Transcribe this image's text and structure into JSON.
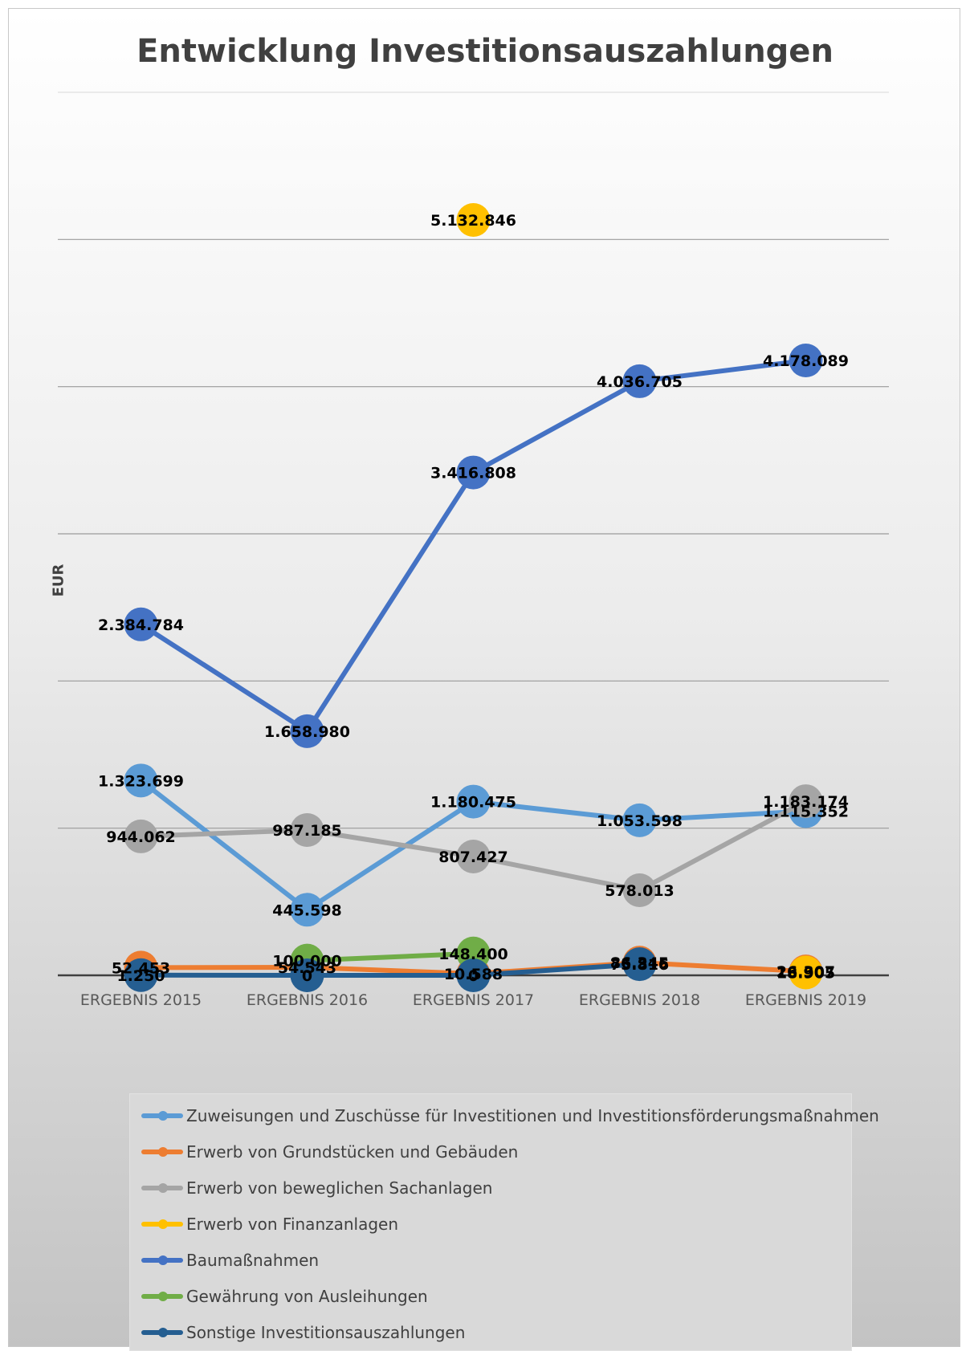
{
  "chart_data": {
    "type": "line",
    "title": "Entwicklung Investitionsauszahlungen",
    "ylabel": "EUR",
    "xlabel": "",
    "categories": [
      "ERGEBNIS 2015",
      "ERGEBNIS 2016",
      "ERGEBNIS 2017",
      "ERGEBNIS 2018",
      "ERGEBNIS 2019"
    ],
    "ylim": [
      0,
      6000000
    ],
    "grid": true,
    "legend_position": "bottom",
    "series": [
      {
        "name": "Zuweisungen und Zuschüsse für Investitionen und Investitionsförderungsmaßnahmen",
        "color": "#5b9bd5",
        "values": [
          1323699,
          445598,
          1180475,
          1053598,
          1115352
        ],
        "labels": [
          "1.323.699",
          "445.598",
          "1.180.475",
          "1.053.598",
          "1.115.352"
        ]
      },
      {
        "name": "Erwerb von Grundstücken und Gebäuden",
        "color": "#ed7d31",
        "values": [
          52453,
          54543,
          10588,
          86345,
          26307
        ],
        "labels": [
          "52.453",
          "54.543",
          "10.588",
          "86.345",
          "26.307"
        ]
      },
      {
        "name": "Erwerb von beweglichen Sachanlagen",
        "color": "#a5a5a5",
        "values": [
          944062,
          987185,
          807427,
          578013,
          1183174
        ],
        "labels": [
          "944.062",
          "987.185",
          "807.427",
          "578.013",
          "1.183.174"
        ]
      },
      {
        "name": "Erwerb von Finanzanlagen",
        "color": "#ffc000",
        "values": [
          null,
          null,
          5132846,
          null,
          18905
        ],
        "labels": [
          null,
          null,
          "5.132.846",
          null,
          "18.905"
        ]
      },
      {
        "name": "Baumaßnahmen",
        "color": "#4472c4",
        "values": [
          2384784,
          1658980,
          3416808,
          4036705,
          4178089
        ],
        "labels": [
          "2.384.784",
          "1.658.980",
          "3.416.808",
          "4.036.705",
          "4.178.089"
        ]
      },
      {
        "name": "Gewährung von Ausleihungen",
        "color": "#70ad47",
        "values": [
          null,
          100000,
          148400,
          null,
          null
        ],
        "labels": [
          null,
          "100.000",
          "148.400",
          null,
          null
        ]
      },
      {
        "name": "Sonstige Investitionsauszahlungen",
        "color": "#255e91",
        "values": [
          1250,
          0,
          0,
          75816,
          null
        ],
        "labels": [
          "1.250",
          "0",
          "0",
          "75.816",
          null
        ]
      }
    ]
  }
}
